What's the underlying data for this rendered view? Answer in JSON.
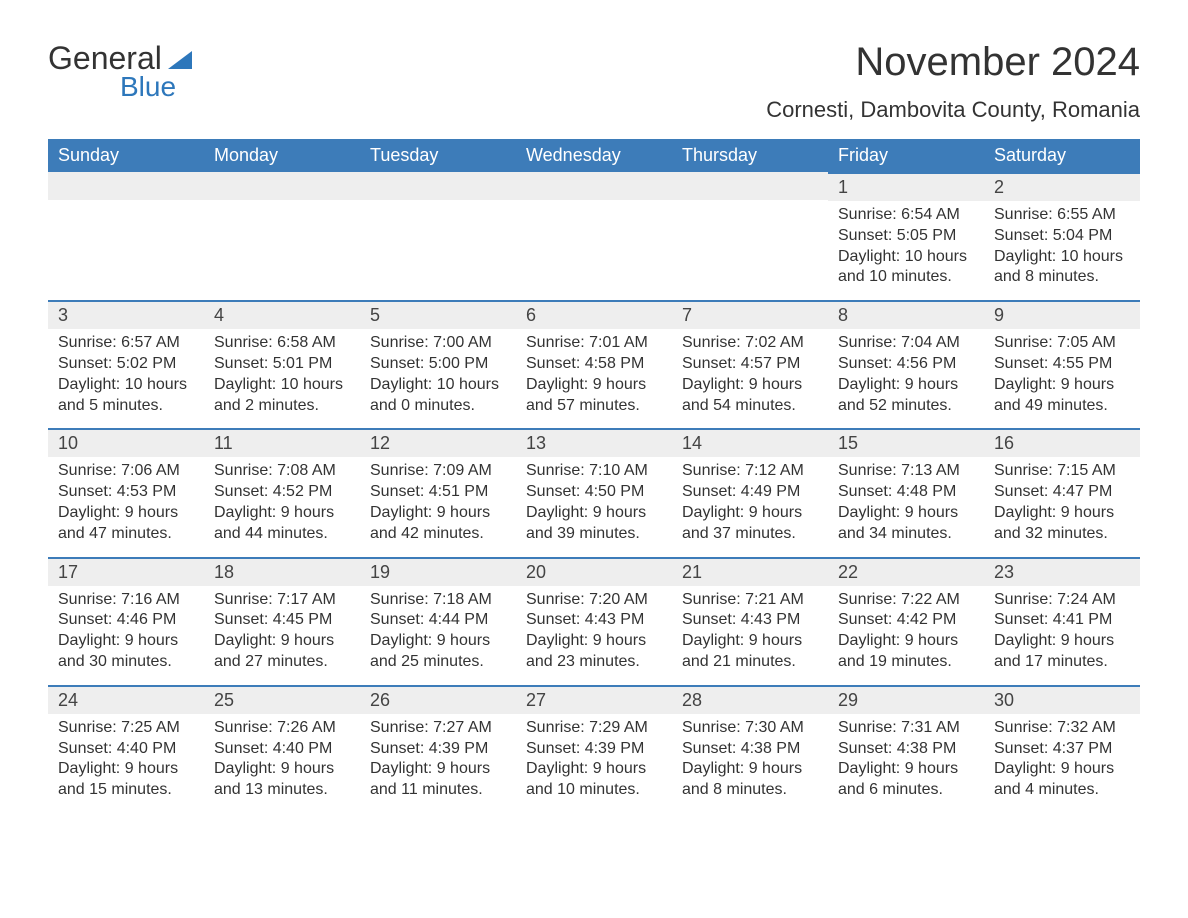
{
  "logo": {
    "text_general": "General",
    "text_blue": "Blue"
  },
  "header": {
    "month": "November 2024",
    "location": "Cornesti, Dambovita County, Romania"
  },
  "weekdays": [
    "Sunday",
    "Monday",
    "Tuesday",
    "Wednesday",
    "Thursday",
    "Friday",
    "Saturday"
  ],
  "colors": {
    "header_bg": "#3d7cb9",
    "header_text": "#ffffff",
    "accent": "#2d77bb",
    "day_bg": "#eeeeee",
    "text": "#333333",
    "border_top": "#3d7cb9",
    "page_bg": "#ffffff"
  },
  "typography": {
    "title_fontsize": 40,
    "location_fontsize": 22,
    "weekday_fontsize": 18,
    "daynum_fontsize": 18,
    "detail_fontsize": 16,
    "logo_general_fontsize": 32,
    "logo_blue_fontsize": 28
  },
  "weeks": [
    [
      {
        "day": "",
        "sunrise": "",
        "sunset": "",
        "daylight": ""
      },
      {
        "day": "",
        "sunrise": "",
        "sunset": "",
        "daylight": ""
      },
      {
        "day": "",
        "sunrise": "",
        "sunset": "",
        "daylight": ""
      },
      {
        "day": "",
        "sunrise": "",
        "sunset": "",
        "daylight": ""
      },
      {
        "day": "",
        "sunrise": "",
        "sunset": "",
        "daylight": ""
      },
      {
        "day": "1",
        "sunrise": "Sunrise: 6:54 AM",
        "sunset": "Sunset: 5:05 PM",
        "daylight": "Daylight: 10 hours and 10 minutes."
      },
      {
        "day": "2",
        "sunrise": "Sunrise: 6:55 AM",
        "sunset": "Sunset: 5:04 PM",
        "daylight": "Daylight: 10 hours and 8 minutes."
      }
    ],
    [
      {
        "day": "3",
        "sunrise": "Sunrise: 6:57 AM",
        "sunset": "Sunset: 5:02 PM",
        "daylight": "Daylight: 10 hours and 5 minutes."
      },
      {
        "day": "4",
        "sunrise": "Sunrise: 6:58 AM",
        "sunset": "Sunset: 5:01 PM",
        "daylight": "Daylight: 10 hours and 2 minutes."
      },
      {
        "day": "5",
        "sunrise": "Sunrise: 7:00 AM",
        "sunset": "Sunset: 5:00 PM",
        "daylight": "Daylight: 10 hours and 0 minutes."
      },
      {
        "day": "6",
        "sunrise": "Sunrise: 7:01 AM",
        "sunset": "Sunset: 4:58 PM",
        "daylight": "Daylight: 9 hours and 57 minutes."
      },
      {
        "day": "7",
        "sunrise": "Sunrise: 7:02 AM",
        "sunset": "Sunset: 4:57 PM",
        "daylight": "Daylight: 9 hours and 54 minutes."
      },
      {
        "day": "8",
        "sunrise": "Sunrise: 7:04 AM",
        "sunset": "Sunset: 4:56 PM",
        "daylight": "Daylight: 9 hours and 52 minutes."
      },
      {
        "day": "9",
        "sunrise": "Sunrise: 7:05 AM",
        "sunset": "Sunset: 4:55 PM",
        "daylight": "Daylight: 9 hours and 49 minutes."
      }
    ],
    [
      {
        "day": "10",
        "sunrise": "Sunrise: 7:06 AM",
        "sunset": "Sunset: 4:53 PM",
        "daylight": "Daylight: 9 hours and 47 minutes."
      },
      {
        "day": "11",
        "sunrise": "Sunrise: 7:08 AM",
        "sunset": "Sunset: 4:52 PM",
        "daylight": "Daylight: 9 hours and 44 minutes."
      },
      {
        "day": "12",
        "sunrise": "Sunrise: 7:09 AM",
        "sunset": "Sunset: 4:51 PM",
        "daylight": "Daylight: 9 hours and 42 minutes."
      },
      {
        "day": "13",
        "sunrise": "Sunrise: 7:10 AM",
        "sunset": "Sunset: 4:50 PM",
        "daylight": "Daylight: 9 hours and 39 minutes."
      },
      {
        "day": "14",
        "sunrise": "Sunrise: 7:12 AM",
        "sunset": "Sunset: 4:49 PM",
        "daylight": "Daylight: 9 hours and 37 minutes."
      },
      {
        "day": "15",
        "sunrise": "Sunrise: 7:13 AM",
        "sunset": "Sunset: 4:48 PM",
        "daylight": "Daylight: 9 hours and 34 minutes."
      },
      {
        "day": "16",
        "sunrise": "Sunrise: 7:15 AM",
        "sunset": "Sunset: 4:47 PM",
        "daylight": "Daylight: 9 hours and 32 minutes."
      }
    ],
    [
      {
        "day": "17",
        "sunrise": "Sunrise: 7:16 AM",
        "sunset": "Sunset: 4:46 PM",
        "daylight": "Daylight: 9 hours and 30 minutes."
      },
      {
        "day": "18",
        "sunrise": "Sunrise: 7:17 AM",
        "sunset": "Sunset: 4:45 PM",
        "daylight": "Daylight: 9 hours and 27 minutes."
      },
      {
        "day": "19",
        "sunrise": "Sunrise: 7:18 AM",
        "sunset": "Sunset: 4:44 PM",
        "daylight": "Daylight: 9 hours and 25 minutes."
      },
      {
        "day": "20",
        "sunrise": "Sunrise: 7:20 AM",
        "sunset": "Sunset: 4:43 PM",
        "daylight": "Daylight: 9 hours and 23 minutes."
      },
      {
        "day": "21",
        "sunrise": "Sunrise: 7:21 AM",
        "sunset": "Sunset: 4:43 PM",
        "daylight": "Daylight: 9 hours and 21 minutes."
      },
      {
        "day": "22",
        "sunrise": "Sunrise: 7:22 AM",
        "sunset": "Sunset: 4:42 PM",
        "daylight": "Daylight: 9 hours and 19 minutes."
      },
      {
        "day": "23",
        "sunrise": "Sunrise: 7:24 AM",
        "sunset": "Sunset: 4:41 PM",
        "daylight": "Daylight: 9 hours and 17 minutes."
      }
    ],
    [
      {
        "day": "24",
        "sunrise": "Sunrise: 7:25 AM",
        "sunset": "Sunset: 4:40 PM",
        "daylight": "Daylight: 9 hours and 15 minutes."
      },
      {
        "day": "25",
        "sunrise": "Sunrise: 7:26 AM",
        "sunset": "Sunset: 4:40 PM",
        "daylight": "Daylight: 9 hours and 13 minutes."
      },
      {
        "day": "26",
        "sunrise": "Sunrise: 7:27 AM",
        "sunset": "Sunset: 4:39 PM",
        "daylight": "Daylight: 9 hours and 11 minutes."
      },
      {
        "day": "27",
        "sunrise": "Sunrise: 7:29 AM",
        "sunset": "Sunset: 4:39 PM",
        "daylight": "Daylight: 9 hours and 10 minutes."
      },
      {
        "day": "28",
        "sunrise": "Sunrise: 7:30 AM",
        "sunset": "Sunset: 4:38 PM",
        "daylight": "Daylight: 9 hours and 8 minutes."
      },
      {
        "day": "29",
        "sunrise": "Sunrise: 7:31 AM",
        "sunset": "Sunset: 4:38 PM",
        "daylight": "Daylight: 9 hours and 6 minutes."
      },
      {
        "day": "30",
        "sunrise": "Sunrise: 7:32 AM",
        "sunset": "Sunset: 4:37 PM",
        "daylight": "Daylight: 9 hours and 4 minutes."
      }
    ]
  ]
}
